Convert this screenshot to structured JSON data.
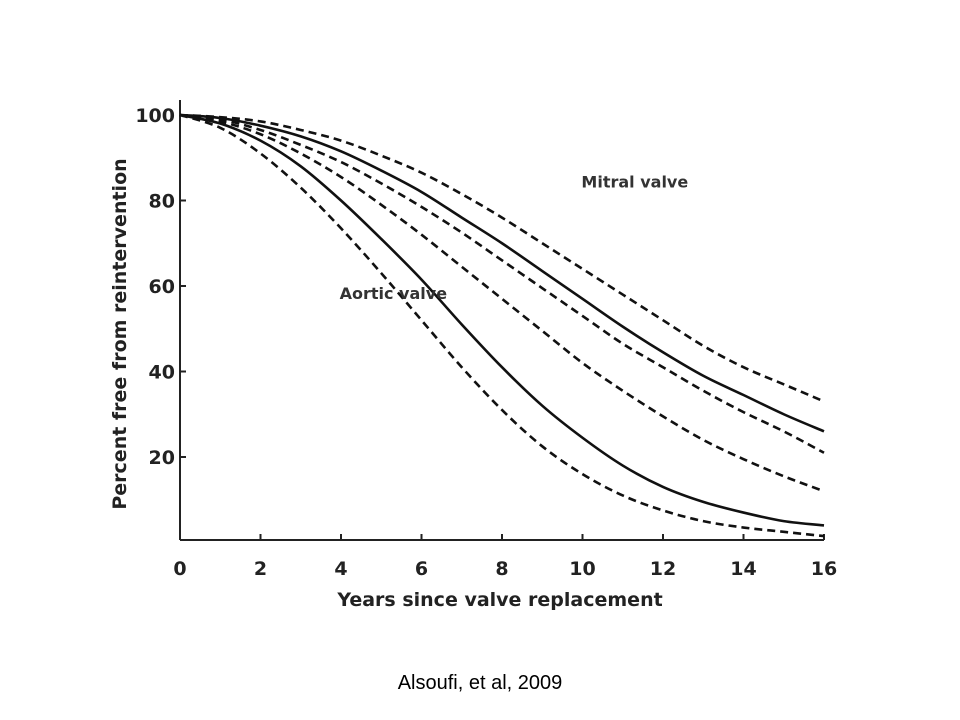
{
  "citation": "Alsoufi, et al, 2009",
  "chart_data": {
    "type": "line",
    "title": "",
    "xlabel": "Years since valve replacement",
    "ylabel": "Percent free from reintervention",
    "xlim": [
      0,
      16
    ],
    "ylim": [
      0,
      100
    ],
    "x_ticks": [
      "0",
      "2",
      "4",
      "6",
      "8",
      "10",
      "12",
      "14",
      "16"
    ],
    "y_ticks": [
      "20",
      "40",
      "60",
      "80",
      "100"
    ],
    "grid": false,
    "legend": "none",
    "annotations": [
      {
        "text": "Mitral valve",
        "x": 11.3,
        "y": 83
      },
      {
        "text": "Aortic valve",
        "x": 5.3,
        "y": 57
      }
    ],
    "x": [
      0,
      1,
      2,
      3,
      4,
      5,
      6,
      7,
      8,
      9,
      10,
      11,
      12,
      13,
      14,
      15,
      16
    ],
    "series": [
      {
        "style": "dashed",
        "values": [
          100,
          99.5,
          98.5,
          96.5,
          94,
          90.5,
          86.5,
          81.5,
          76,
          70,
          64,
          58,
          52,
          46,
          41,
          37,
          33
        ]
      },
      {
        "style": "solid",
        "values": [
          100,
          99.3,
          97.5,
          95,
          91.5,
          87,
          82,
          76,
          70,
          63.5,
          57,
          50.5,
          44.5,
          39,
          34.5,
          30,
          26
        ]
      },
      {
        "style": "dashed",
        "values": [
          100,
          99,
          96.5,
          93,
          89,
          84,
          78.5,
          72.5,
          66,
          59.5,
          53,
          46.5,
          41,
          35.5,
          30.5,
          26,
          21
        ]
      },
      {
        "style": "dashed",
        "values": [
          100,
          98.5,
          95.5,
          91,
          85.5,
          79,
          72,
          64.5,
          57,
          49.5,
          42,
          35.5,
          29.5,
          24,
          19.5,
          15.5,
          12
        ]
      },
      {
        "style": "solid",
        "values": [
          100,
          98,
          94,
          88,
          80,
          71,
          61.5,
          51,
          41,
          32,
          24.5,
          18,
          13,
          9.5,
          7,
          5,
          4
        ]
      },
      {
        "style": "dashed",
        "values": [
          100,
          97,
          91,
          83,
          73.5,
          63,
          52,
          41,
          31,
          22.5,
          16,
          11,
          7.5,
          5,
          3.5,
          2.5,
          1.5
        ]
      }
    ]
  }
}
